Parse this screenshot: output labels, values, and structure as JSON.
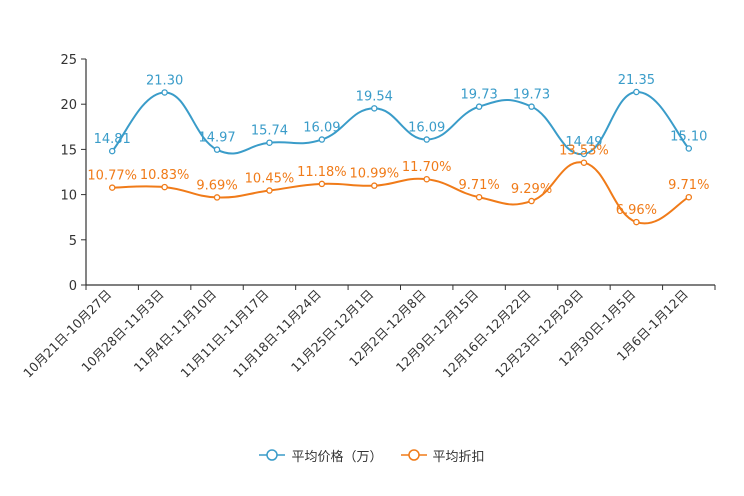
{
  "chart_data": {
    "type": "line",
    "title": "",
    "xlabel": "",
    "ylabel": "",
    "ylim": [
      0,
      25
    ],
    "yticks": [
      0,
      5,
      10,
      15,
      20,
      25
    ],
    "grid": false,
    "legend_position": "bottom-center",
    "categories": [
      "10月21日-10月27日",
      "10月28日-11月3日",
      "11月4日-11月10日",
      "11月11日-11月17日",
      "11月18日-11月24日",
      "11月25日-12月1日",
      "12月2日-12月8日",
      "12月9日-12月15日",
      "12月16日-12月22日",
      "12月23日-12月29日",
      "12月30日-1月5日",
      "1月6日-1月12日"
    ],
    "series": [
      {
        "name": "平均价格（万）",
        "color": "#3a9cc9",
        "values": [
          14.81,
          21.3,
          14.97,
          15.74,
          16.09,
          19.54,
          16.09,
          19.73,
          19.73,
          14.49,
          21.35,
          15.1
        ],
        "labels": [
          "14.81",
          "21.30",
          "14.97",
          "15.74",
          "16.09",
          "19.54",
          "16.09",
          "19.73",
          "19.73",
          "14.49",
          "21.35",
          "15.10"
        ]
      },
      {
        "name": "平均折扣",
        "color": "#f07b19",
        "values": [
          10.77,
          10.83,
          9.69,
          10.45,
          11.18,
          10.99,
          11.7,
          9.71,
          9.29,
          13.53,
          6.96,
          9.71
        ],
        "labels": [
          "10.77%",
          "10.83%",
          "9.69%",
          "10.45%",
          "11.18%",
          "10.99%",
          "11.70%",
          "9.71%",
          "9.29%",
          "13.53%",
          "6.96%",
          "9.71%"
        ]
      }
    ]
  }
}
